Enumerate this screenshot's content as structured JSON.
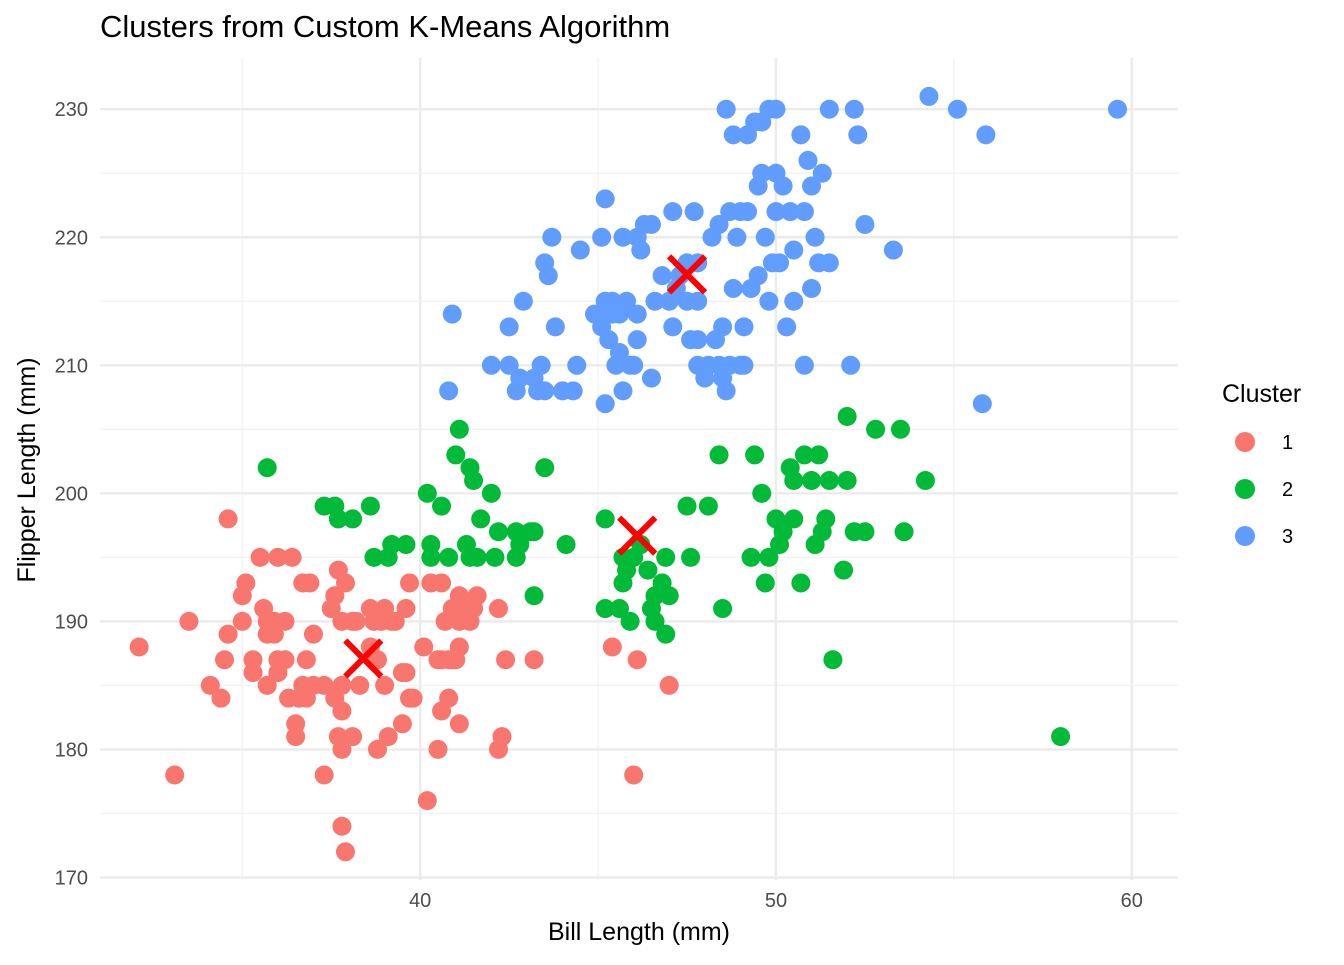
{
  "chart_data": {
    "type": "scatter",
    "title": "Clusters from Custom K-Means Algorithm",
    "xlabel": "Bill Length (mm)",
    "ylabel": "Flipper Length (mm)",
    "xlim": [
      31,
      61.3
    ],
    "ylim": [
      169.8,
      234
    ],
    "x_ticks": [
      40,
      50,
      60
    ],
    "y_ticks": [
      170,
      180,
      190,
      200,
      210,
      220,
      230
    ],
    "grid": true,
    "legend": {
      "title": "Cluster",
      "placement": "right",
      "entries": [
        {
          "label": "1",
          "color": "#F8766D"
        },
        {
          "label": "2",
          "color": "#00BA38"
        },
        {
          "label": "3",
          "color": "#619CFF"
        }
      ]
    },
    "centroid_color": "#FF0000",
    "centroids": [
      {
        "cluster": "1",
        "x": 38.4,
        "y": 187.1
      },
      {
        "cluster": "2",
        "x": 46.1,
        "y": 196.7
      },
      {
        "cluster": "3",
        "x": 47.5,
        "y": 217.1
      }
    ],
    "series": [
      {
        "name": "1",
        "color": "#F8766D",
        "points": [
          [
            32.1,
            188
          ],
          [
            33.1,
            178
          ],
          [
            33.5,
            190
          ],
          [
            34.1,
            185
          ],
          [
            34.4,
            184
          ],
          [
            34.5,
            187
          ],
          [
            34.6,
            189
          ],
          [
            34.6,
            198
          ],
          [
            35.0,
            190
          ],
          [
            35.0,
            192
          ],
          [
            35.1,
            193
          ],
          [
            35.3,
            186
          ],
          [
            35.3,
            187
          ],
          [
            35.5,
            195
          ],
          [
            35.6,
            191
          ],
          [
            35.7,
            189
          ],
          [
            35.7,
            190
          ],
          [
            35.7,
            185
          ],
          [
            35.9,
            189
          ],
          [
            35.9,
            190
          ],
          [
            36.0,
            186
          ],
          [
            36.0,
            195
          ],
          [
            36.0,
            187
          ],
          [
            36.2,
            187
          ],
          [
            36.2,
            190
          ],
          [
            36.3,
            184
          ],
          [
            36.4,
            195
          ],
          [
            36.5,
            181
          ],
          [
            36.5,
            182
          ],
          [
            36.6,
            184
          ],
          [
            36.7,
            185
          ],
          [
            36.7,
            193
          ],
          [
            36.8,
            184
          ],
          [
            36.8,
            187
          ],
          [
            36.9,
            193
          ],
          [
            37.0,
            185
          ],
          [
            37.0,
            189
          ],
          [
            37.3,
            185
          ],
          [
            37.3,
            178
          ],
          [
            37.5,
            191
          ],
          [
            37.6,
            184
          ],
          [
            37.6,
            192
          ],
          [
            37.7,
            181
          ],
          [
            37.7,
            194
          ],
          [
            37.8,
            190
          ],
          [
            37.8,
            185
          ],
          [
            37.8,
            180
          ],
          [
            37.8,
            183
          ],
          [
            37.8,
            174
          ],
          [
            37.9,
            172
          ],
          [
            37.9,
            193
          ],
          [
            38.1,
            190
          ],
          [
            38.1,
            181
          ],
          [
            38.2,
            190
          ],
          [
            38.3,
            185
          ],
          [
            38.6,
            191
          ],
          [
            38.6,
            188
          ],
          [
            38.7,
            190
          ],
          [
            38.8,
            180
          ],
          [
            38.8,
            187
          ],
          [
            38.9,
            190
          ],
          [
            39.0,
            185
          ],
          [
            39.0,
            191
          ],
          [
            39.1,
            181
          ],
          [
            39.2,
            190
          ],
          [
            39.3,
            190
          ],
          [
            39.5,
            186
          ],
          [
            39.5,
            182
          ],
          [
            39.6,
            191
          ],
          [
            39.6,
            186
          ],
          [
            39.7,
            193
          ],
          [
            39.7,
            184
          ],
          [
            39.8,
            184
          ],
          [
            40.1,
            188
          ],
          [
            40.2,
            176
          ],
          [
            40.3,
            193
          ],
          [
            40.5,
            187
          ],
          [
            40.5,
            180
          ],
          [
            40.6,
            183
          ],
          [
            40.6,
            187
          ],
          [
            40.6,
            193
          ],
          [
            40.7,
            190
          ],
          [
            40.8,
            187
          ],
          [
            40.8,
            184
          ],
          [
            40.9,
            187
          ],
          [
            40.9,
            191
          ],
          [
            41.0,
            187
          ],
          [
            41.1,
            190
          ],
          [
            41.1,
            182
          ],
          [
            41.1,
            192
          ],
          [
            41.1,
            188
          ],
          [
            41.3,
            191
          ],
          [
            41.4,
            190
          ],
          [
            41.5,
            191
          ],
          [
            41.6,
            192
          ],
          [
            42.2,
            180
          ],
          [
            42.2,
            191
          ],
          [
            42.3,
            181
          ],
          [
            42.4,
            187
          ],
          [
            43.2,
            187
          ],
          [
            45.4,
            188
          ],
          [
            46.0,
            178
          ],
          [
            46.1,
            187
          ],
          [
            47.0,
            185
          ]
        ]
      },
      {
        "name": "2",
        "color": "#00BA38",
        "points": [
          [
            35.7,
            202
          ],
          [
            37.3,
            199
          ],
          [
            37.6,
            199
          ],
          [
            37.7,
            198
          ],
          [
            38.1,
            198
          ],
          [
            38.6,
            199
          ],
          [
            38.7,
            195
          ],
          [
            39.1,
            195
          ],
          [
            39.2,
            196
          ],
          [
            39.6,
            196
          ],
          [
            40.2,
            200
          ],
          [
            40.3,
            196
          ],
          [
            40.3,
            195
          ],
          [
            40.6,
            199
          ],
          [
            40.8,
            195
          ],
          [
            41.0,
            203
          ],
          [
            41.1,
            205
          ],
          [
            41.3,
            196
          ],
          [
            41.4,
            195
          ],
          [
            41.4,
            202
          ],
          [
            41.5,
            201
          ],
          [
            41.6,
            195
          ],
          [
            41.7,
            198
          ],
          [
            42.0,
            200
          ],
          [
            42.1,
            195
          ],
          [
            42.2,
            197
          ],
          [
            42.7,
            197
          ],
          [
            42.7,
            195
          ],
          [
            42.8,
            196
          ],
          [
            43.1,
            197
          ],
          [
            43.2,
            197
          ],
          [
            43.2,
            192
          ],
          [
            43.5,
            202
          ],
          [
            44.1,
            196
          ],
          [
            45.2,
            191
          ],
          [
            45.2,
            198
          ],
          [
            45.6,
            191
          ],
          [
            45.7,
            195
          ],
          [
            45.7,
            193
          ],
          [
            45.8,
            194
          ],
          [
            45.9,
            190
          ],
          [
            46.0,
            195
          ],
          [
            46.2,
            196
          ],
          [
            46.4,
            194
          ],
          [
            46.5,
            191
          ],
          [
            46.6,
            190
          ],
          [
            46.6,
            192
          ],
          [
            46.8,
            193
          ],
          [
            46.9,
            195
          ],
          [
            47.0,
            192
          ],
          [
            46.9,
            189
          ],
          [
            47.5,
            199
          ],
          [
            47.6,
            195
          ],
          [
            48.1,
            199
          ],
          [
            48.4,
            203
          ],
          [
            48.5,
            191
          ],
          [
            49.3,
            195
          ],
          [
            49.4,
            203
          ],
          [
            49.6,
            200
          ],
          [
            49.7,
            193
          ],
          [
            49.8,
            195
          ],
          [
            50.0,
            198
          ],
          [
            50.1,
            196
          ],
          [
            50.2,
            197
          ],
          [
            50.4,
            202
          ],
          [
            50.5,
            198
          ],
          [
            50.5,
            201
          ],
          [
            50.7,
            193
          ],
          [
            50.8,
            203
          ],
          [
            51.0,
            201
          ],
          [
            51.1,
            196
          ],
          [
            51.2,
            203
          ],
          [
            51.3,
            197
          ],
          [
            51.4,
            198
          ],
          [
            51.5,
            201
          ],
          [
            51.6,
            187
          ],
          [
            51.9,
            194
          ],
          [
            52.0,
            206
          ],
          [
            52.0,
            201
          ],
          [
            52.2,
            197
          ],
          [
            52.5,
            197
          ],
          [
            52.8,
            205
          ],
          [
            53.5,
            205
          ],
          [
            54.2,
            201
          ],
          [
            53.6,
            197
          ],
          [
            58.0,
            181
          ]
        ]
      },
      {
        "name": "3",
        "color": "#619CFF",
        "points": [
          [
            40.9,
            214
          ],
          [
            40.8,
            208
          ],
          [
            42.0,
            210
          ],
          [
            42.5,
            210
          ],
          [
            42.7,
            208
          ],
          [
            42.8,
            209
          ],
          [
            42.9,
            215
          ],
          [
            42.5,
            213
          ],
          [
            43.2,
            209
          ],
          [
            43.3,
            208
          ],
          [
            43.4,
            210
          ],
          [
            43.5,
            208
          ],
          [
            43.5,
            218
          ],
          [
            43.6,
            217
          ],
          [
            43.7,
            220
          ],
          [
            43.8,
            213
          ],
          [
            44.0,
            208
          ],
          [
            44.3,
            208
          ],
          [
            44.4,
            210
          ],
          [
            44.5,
            219
          ],
          [
            44.9,
            214
          ],
          [
            45.1,
            213
          ],
          [
            45.1,
            220
          ],
          [
            45.2,
            215
          ],
          [
            45.2,
            223
          ],
          [
            45.3,
            212
          ],
          [
            45.4,
            214
          ],
          [
            45.5,
            210
          ],
          [
            45.6,
            214
          ],
          [
            45.7,
            220
          ],
          [
            45.8,
            215
          ],
          [
            45.9,
            210
          ],
          [
            46.1,
            214
          ],
          [
            46.1,
            212
          ],
          [
            45.6,
            211
          ],
          [
            45.2,
            207
          ],
          [
            45.4,
            215
          ],
          [
            45.7,
            208
          ],
          [
            46.0,
            210
          ],
          [
            46.2,
            219
          ],
          [
            46.5,
            209
          ],
          [
            46.6,
            215
          ],
          [
            46.8,
            217
          ],
          [
            47.0,
            215
          ],
          [
            47.1,
            213
          ],
          [
            47.2,
            216
          ],
          [
            47.3,
            217
          ],
          [
            47.5,
            215
          ],
          [
            47.5,
            218
          ],
          [
            47.6,
            212
          ],
          [
            47.8,
            215
          ],
          [
            47.8,
            212
          ],
          [
            47.8,
            210
          ],
          [
            48.0,
            209
          ],
          [
            48.1,
            210
          ],
          [
            48.3,
            212
          ],
          [
            48.4,
            210
          ],
          [
            48.5,
            209
          ],
          [
            48.6,
            208
          ],
          [
            48.7,
            210
          ],
          [
            48.5,
            213
          ],
          [
            48.8,
            216
          ],
          [
            49.0,
            210
          ],
          [
            49.1,
            213
          ],
          [
            49.3,
            216
          ],
          [
            49.5,
            217
          ],
          [
            49.8,
            215
          ],
          [
            49.9,
            218
          ],
          [
            50.1,
            218
          ],
          [
            50.3,
            213
          ],
          [
            50.5,
            215
          ],
          [
            50.8,
            210
          ],
          [
            51.1,
            220
          ],
          [
            51.2,
            218
          ],
          [
            51.5,
            218
          ],
          [
            50.4,
            222
          ],
          [
            50.8,
            222
          ],
          [
            51.0,
            224
          ],
          [
            51.3,
            225
          ],
          [
            50.2,
            224
          ],
          [
            50.0,
            225
          ],
          [
            49.6,
            225
          ],
          [
            49.5,
            224
          ],
          [
            49.2,
            222
          ],
          [
            49.0,
            222
          ],
          [
            48.7,
            222
          ],
          [
            48.4,
            221
          ],
          [
            47.7,
            222
          ],
          [
            47.1,
            222
          ],
          [
            46.3,
            221
          ],
          [
            46.1,
            220
          ],
          [
            46.5,
            221
          ],
          [
            49.6,
            229
          ],
          [
            49.8,
            230
          ],
          [
            50.0,
            230
          ],
          [
            49.4,
            229
          ],
          [
            49.2,
            228
          ],
          [
            48.8,
            228
          ],
          [
            48.6,
            230
          ],
          [
            50.7,
            228
          ],
          [
            50.9,
            226
          ],
          [
            51.5,
            230
          ],
          [
            52.2,
            230
          ],
          [
            52.3,
            228
          ],
          [
            52.5,
            221
          ],
          [
            53.3,
            219
          ],
          [
            54.3,
            231
          ],
          [
            55.1,
            230
          ],
          [
            55.9,
            228
          ],
          [
            55.8,
            207
          ],
          [
            52.1,
            210
          ],
          [
            59.6,
            230
          ],
          [
            48.9,
            220
          ],
          [
            49.7,
            220
          ],
          [
            50.5,
            219
          ],
          [
            47.8,
            218
          ],
          [
            48.2,
            220
          ],
          [
            49.1,
            210
          ],
          [
            50.0,
            222
          ],
          [
            51.0,
            216
          ]
        ]
      }
    ]
  }
}
